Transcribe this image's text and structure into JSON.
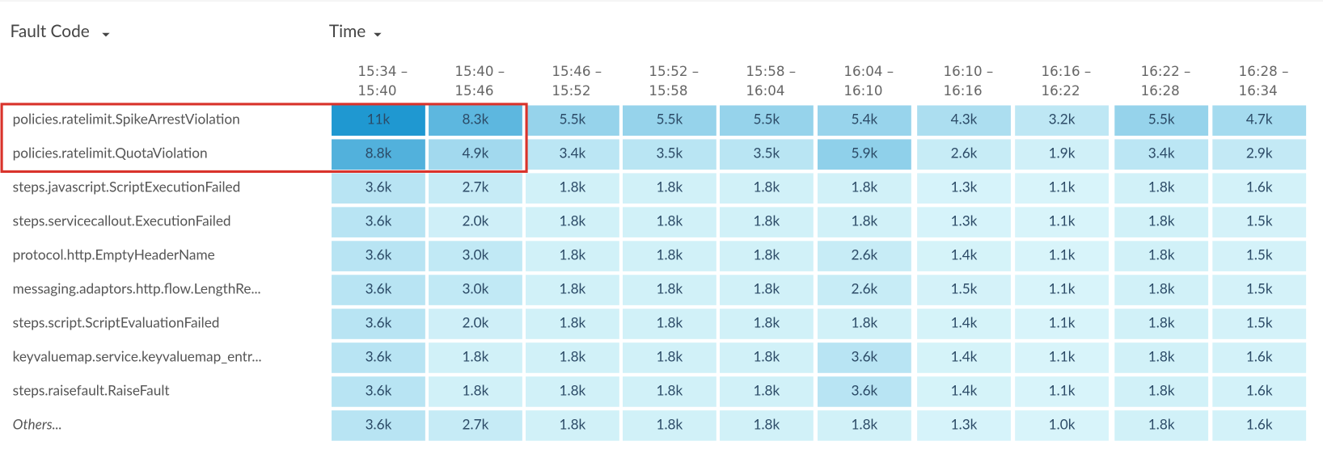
{
  "chart_data": {
    "type": "heatmap",
    "row_header": "Fault Code",
    "column_header": "Time",
    "x": [
      "15:34 – 15:40",
      "15:40 – 15:46",
      "15:46 – 15:52",
      "15:52 – 15:58",
      "15:58 – 16:04",
      "16:04 – 16:10",
      "16:10 – 16:16",
      "16:16 – 16:22",
      "16:22 – 16:28",
      "16:28 – 16:34"
    ],
    "y": [
      "policies.ratelimit.SpikeArrestViolation",
      "policies.ratelimit.QuotaViolation",
      "steps.javascript.ScriptExecutionFailed",
      "steps.servicecallout.ExecutionFailed",
      "protocol.http.EmptyHeaderName",
      "messaging.adaptors.http.flow.LengthRe...",
      "steps.script.ScriptEvaluationFailed",
      "keyvaluemap.service.keyvaluemap_entr...",
      "steps.raisefault.RaiseFault",
      "Others..."
    ],
    "values": [
      [
        11000,
        8300,
        5500,
        5500,
        5500,
        5400,
        4300,
        3200,
        5500,
        4700
      ],
      [
        8800,
        4900,
        3400,
        3500,
        3500,
        5900,
        2600,
        1900,
        3400,
        2900
      ],
      [
        3600,
        2700,
        1800,
        1800,
        1800,
        1800,
        1300,
        1100,
        1800,
        1600
      ],
      [
        3600,
        2000,
        1800,
        1800,
        1800,
        1800,
        1300,
        1100,
        1800,
        1500
      ],
      [
        3600,
        3000,
        1800,
        1800,
        1800,
        2600,
        1400,
        1100,
        1800,
        1500
      ],
      [
        3600,
        3000,
        1800,
        1800,
        1800,
        2600,
        1500,
        1100,
        1800,
        1500
      ],
      [
        3600,
        2000,
        1800,
        1800,
        1800,
        1800,
        1400,
        1100,
        1800,
        1500
      ],
      [
        3600,
        1800,
        1800,
        1800,
        1800,
        3600,
        1400,
        1100,
        1800,
        1600
      ],
      [
        3600,
        1800,
        1800,
        1800,
        1800,
        3600,
        1400,
        1100,
        1800,
        1600
      ],
      [
        3600,
        2700,
        1800,
        1800,
        1800,
        1800,
        1300,
        1000,
        1800,
        1600
      ]
    ],
    "value_labels": [
      [
        "11k",
        "8.3k",
        "5.5k",
        "5.5k",
        "5.5k",
        "5.4k",
        "4.3k",
        "3.2k",
        "5.5k",
        "4.7k"
      ],
      [
        "8.8k",
        "4.9k",
        "3.4k",
        "3.5k",
        "3.5k",
        "5.9k",
        "2.6k",
        "1.9k",
        "3.4k",
        "2.9k"
      ],
      [
        "3.6k",
        "2.7k",
        "1.8k",
        "1.8k",
        "1.8k",
        "1.8k",
        "1.3k",
        "1.1k",
        "1.8k",
        "1.6k"
      ],
      [
        "3.6k",
        "2.0k",
        "1.8k",
        "1.8k",
        "1.8k",
        "1.8k",
        "1.3k",
        "1.1k",
        "1.8k",
        "1.5k"
      ],
      [
        "3.6k",
        "3.0k",
        "1.8k",
        "1.8k",
        "1.8k",
        "2.6k",
        "1.4k",
        "1.1k",
        "1.8k",
        "1.5k"
      ],
      [
        "3.6k",
        "3.0k",
        "1.8k",
        "1.8k",
        "1.8k",
        "2.6k",
        "1.5k",
        "1.1k",
        "1.8k",
        "1.5k"
      ],
      [
        "3.6k",
        "2.0k",
        "1.8k",
        "1.8k",
        "1.8k",
        "1.8k",
        "1.4k",
        "1.1k",
        "1.8k",
        "1.5k"
      ],
      [
        "3.6k",
        "1.8k",
        "1.8k",
        "1.8k",
        "1.8k",
        "3.6k",
        "1.4k",
        "1.1k",
        "1.8k",
        "1.6k"
      ],
      [
        "3.6k",
        "1.8k",
        "1.8k",
        "1.8k",
        "1.8k",
        "3.6k",
        "1.4k",
        "1.1k",
        "1.8k",
        "1.6k"
      ],
      [
        "3.6k",
        "2.7k",
        "1.8k",
        "1.8k",
        "1.8k",
        "1.8k",
        "1.3k",
        "1.0k",
        "1.8k",
        "1.6k"
      ]
    ],
    "color_scale": [
      "#d8f4fa",
      "#1f98d1"
    ]
  }
}
